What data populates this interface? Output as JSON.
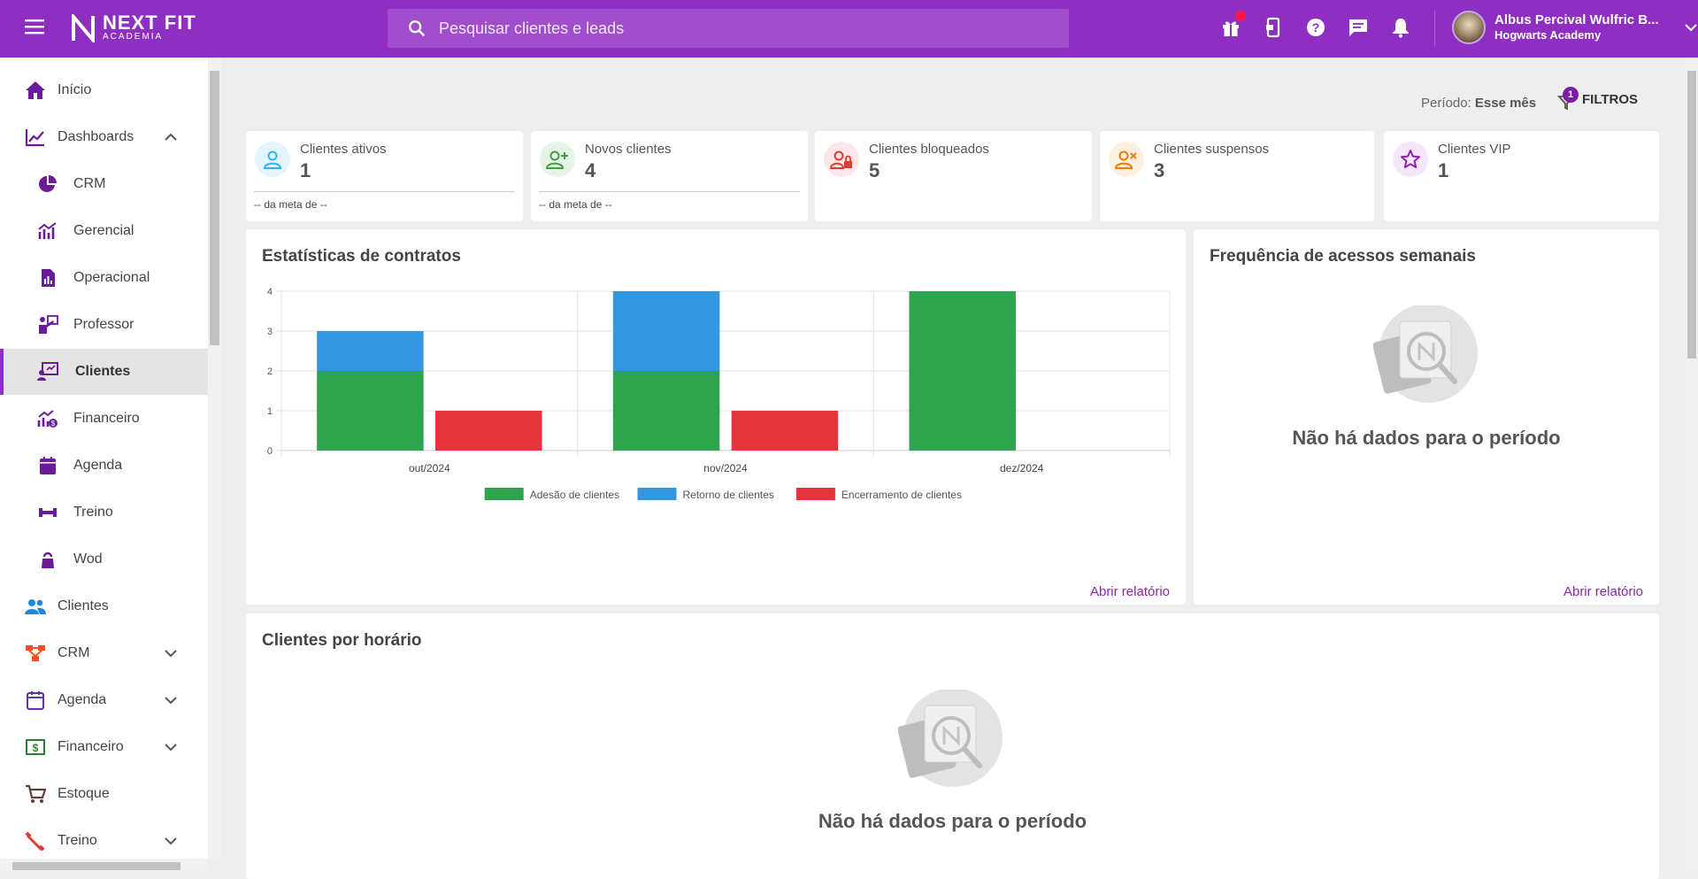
{
  "topbar": {
    "logo_main": "NEXT FIT",
    "logo_sub": "ACADEMIA",
    "search_placeholder": "Pesquisar clientes e leads",
    "user_name": "Albus Percival Wulfric B...",
    "user_org": "Hogwarts Academy"
  },
  "sidebar": {
    "items": [
      {
        "label": "Início"
      },
      {
        "label": "Dashboards"
      },
      {
        "label": "CRM"
      },
      {
        "label": "Gerencial"
      },
      {
        "label": "Operacional"
      },
      {
        "label": "Professor"
      },
      {
        "label": "Clientes"
      },
      {
        "label": "Financeiro"
      },
      {
        "label": "Agenda"
      },
      {
        "label": "Treino"
      },
      {
        "label": "Wod"
      },
      {
        "label": "Clientes"
      },
      {
        "label": "CRM"
      },
      {
        "label": "Agenda"
      },
      {
        "label": "Financeiro"
      },
      {
        "label": "Estoque"
      },
      {
        "label": "Treino"
      }
    ]
  },
  "header": {
    "period_label": "Período:",
    "period_value": "Esse mês",
    "filters_label": "FILTROS",
    "filters_count": "1"
  },
  "stats": [
    {
      "title": "Clientes ativos",
      "value": "1",
      "meta": "-- da meta de --",
      "color": "#29b6f6"
    },
    {
      "title": "Novos clientes",
      "value": "4",
      "meta": "-- da meta de --",
      "color": "#43a047"
    },
    {
      "title": "Clientes bloqueados",
      "value": "5",
      "color": "#e53935"
    },
    {
      "title": "Clientes suspensos",
      "value": "3",
      "color": "#f57c00"
    },
    {
      "title": "Clientes VIP",
      "value": "1",
      "color": "#8e24aa"
    }
  ],
  "contracts": {
    "title": "Estatísticas de contratos",
    "open_report": "Abrir relatório"
  },
  "frequency": {
    "title": "Frequência de acessos semanais",
    "no_data": "Não há dados para o período",
    "open_report": "Abrir relatório"
  },
  "hours": {
    "title": "Clientes por horário",
    "no_data": "Não há dados para o período"
  },
  "chart_data": {
    "type": "bar",
    "categories": [
      "out/2024",
      "nov/2024",
      "dez/2024"
    ],
    "series": [
      {
        "name": "Adesão de clientes",
        "values": [
          2,
          2,
          4
        ],
        "color": "#2ea44f",
        "stack": "a"
      },
      {
        "name": "Retorno de clientes",
        "values": [
          1,
          2,
          0
        ],
        "color": "#3498e0",
        "stack": "a"
      },
      {
        "name": "Encerramento de clientes",
        "values": [
          1,
          1,
          0
        ],
        "color": "#e5343e",
        "stack": "b"
      }
    ],
    "ylim": [
      0,
      4
    ],
    "yticks": [
      "0",
      "1",
      "2",
      "3",
      "4"
    ],
    "title": "",
    "xlabel": "",
    "ylabel": ""
  }
}
